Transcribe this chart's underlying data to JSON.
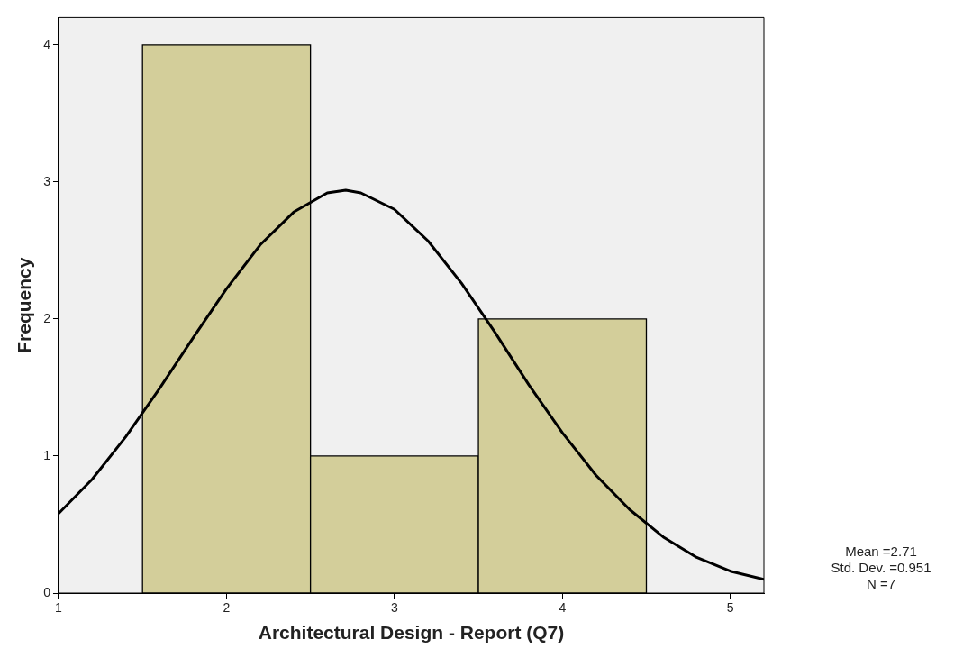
{
  "chart_data": {
    "type": "histogram",
    "xlabel": "Architectural Design - Report (Q7)",
    "ylabel": "Frequency",
    "bins": [
      1.5,
      2.5,
      3.5,
      4.5
    ],
    "values": [
      4,
      1,
      2
    ],
    "color": "#d3ce9a",
    "series": [
      {
        "type": "line",
        "color": "#000000",
        "x": [
          1.0,
          1.2,
          1.4,
          1.6,
          1.8,
          2.0,
          2.2,
          2.4,
          2.6,
          2.71,
          2.8,
          3.0,
          3.2,
          3.4,
          3.6,
          3.8,
          4.0,
          4.2,
          4.4,
          4.6,
          4.8,
          5.0,
          5.2
        ],
        "values": [
          0.58,
          0.83,
          1.14,
          1.49,
          1.86,
          2.22,
          2.54,
          2.78,
          2.92,
          2.94,
          2.92,
          2.8,
          2.57,
          2.26,
          1.9,
          1.52,
          1.17,
          0.86,
          0.61,
          0.41,
          0.26,
          0.16,
          0.1
        ]
      }
    ],
    "xlim": [
      1,
      5.2
    ],
    "xticks": [
      1,
      2,
      3,
      4,
      5
    ],
    "ylim": [
      0,
      4.2
    ],
    "yticks": [
      0,
      1,
      2,
      3,
      4
    ],
    "grid": false,
    "legend": false,
    "marker": "none",
    "line_style": "solid",
    "annotations": [
      "Mean =2.71",
      "Std. Dev. =0.951",
      "N =7"
    ]
  }
}
